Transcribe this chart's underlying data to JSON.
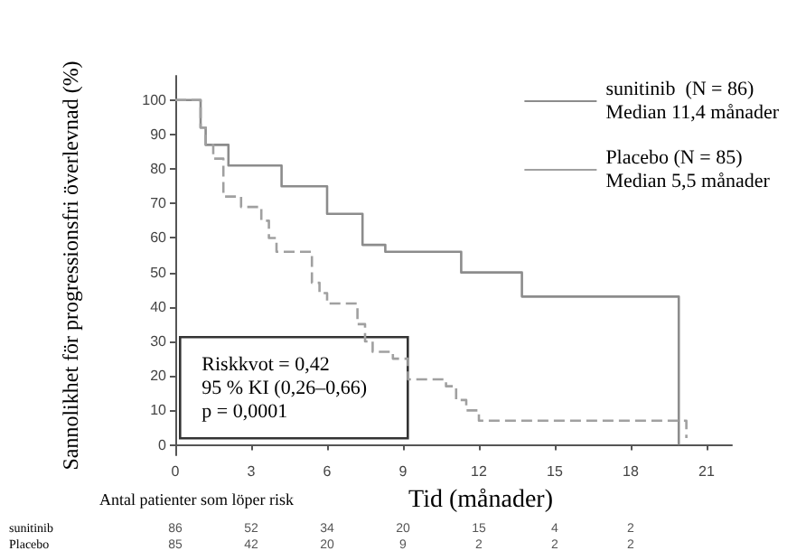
{
  "chart_data": {
    "type": "step",
    "xlabel": "Tid (månader)",
    "ylabel": "Sannolikhet för progressionsfri överlevnad (%)",
    "xlim": [
      0,
      22
    ],
    "xticks": [
      0,
      3,
      6,
      9,
      12,
      15,
      18,
      21
    ],
    "ylim": [
      -3,
      107
    ],
    "yticks": [
      0,
      10,
      20,
      30,
      40,
      50,
      60,
      70,
      80,
      90,
      100
    ],
    "grid": false,
    "legend": "top right",
    "marker": "none",
    "series": [
      {
        "name": "sunitinib  (N = 86)\nMedian 11,4 månader",
        "color": "#8c8c8c",
        "line_style": "solid",
        "x": [
          0,
          0.8,
          1.0,
          1.2,
          2.1,
          4.2,
          6.0,
          7.4,
          8.3,
          11.3,
          13.7,
          19.9
        ],
        "values": [
          100,
          100,
          92,
          87,
          81,
          75,
          67,
          58,
          56,
          50,
          43,
          0
        ]
      },
      {
        "name": "Placebo (N = 85)\nMedian 5,5 månader",
        "color": "#a0a0a0",
        "line_style": "dashed",
        "x": [
          0,
          0.8,
          1.0,
          1.2,
          1.5,
          1.9,
          2.6,
          3.4,
          3.7,
          4.0,
          5.4,
          5.7,
          6.0,
          7.2,
          7.5,
          7.8,
          8.6,
          9.2,
          10.7,
          11.1,
          11.5,
          12.0,
          20.2
        ],
        "values": [
          100,
          100,
          92,
          87,
          83,
          72,
          69,
          65,
          60,
          56,
          47,
          44,
          41,
          35,
          30,
          27,
          25,
          19,
          17,
          13,
          10,
          7,
          2
        ]
      }
    ],
    "annotations": [
      "Riskkvot = 0,42\n95 % KI (0,26–0,66)\np = 0,0001",
      "Antal patienter som löper risk",
      "sunitinib\t86\t52\t34\t20\t15\t4\t2",
      "Placebo\t85\t42\t20\t9\t2\t2\t2"
    ]
  }
}
